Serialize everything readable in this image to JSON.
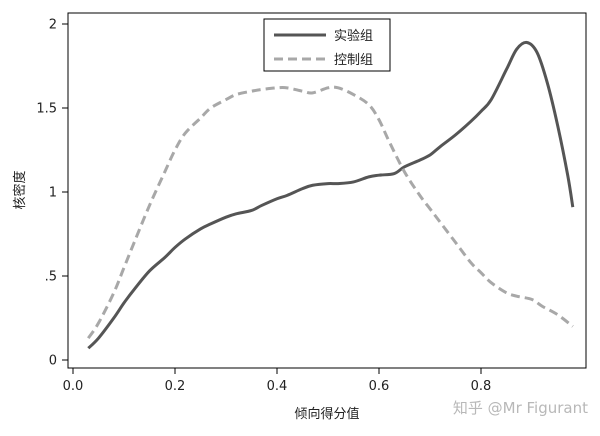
{
  "chart_data": {
    "type": "line",
    "xlabel": "倾向得分值",
    "ylabel": "核密度",
    "xlim": [
      0.0,
      1.0
    ],
    "ylim": [
      0,
      2
    ],
    "xticks": [
      0.0,
      0.2,
      0.4,
      0.6,
      0.8
    ],
    "xtick_labels": [
      "0.0",
      "0.2",
      "0.4",
      "0.6",
      "0.8"
    ],
    "yticks": [
      0,
      0.5,
      1,
      1.5,
      2
    ],
    "ytick_labels": [
      "0",
      ".5",
      "1",
      "1.5",
      "2"
    ],
    "grid": false,
    "legend_position": "top-center",
    "series": [
      {
        "name": "实验组",
        "color": "#555555",
        "dash": "solid",
        "x": [
          0.03,
          0.05,
          0.08,
          0.1,
          0.12,
          0.15,
          0.18,
          0.2,
          0.22,
          0.25,
          0.27,
          0.3,
          0.32,
          0.35,
          0.37,
          0.4,
          0.42,
          0.45,
          0.47,
          0.5,
          0.52,
          0.55,
          0.58,
          0.6,
          0.63,
          0.65,
          0.68,
          0.7,
          0.72,
          0.75,
          0.78,
          0.8,
          0.82,
          0.85,
          0.87,
          0.89,
          0.91,
          0.93,
          0.95,
          0.97,
          0.98
        ],
        "y": [
          0.07,
          0.13,
          0.25,
          0.34,
          0.42,
          0.53,
          0.61,
          0.67,
          0.72,
          0.78,
          0.81,
          0.85,
          0.87,
          0.89,
          0.92,
          0.96,
          0.98,
          1.02,
          1.04,
          1.05,
          1.05,
          1.06,
          1.09,
          1.1,
          1.11,
          1.15,
          1.19,
          1.22,
          1.27,
          1.34,
          1.42,
          1.48,
          1.55,
          1.73,
          1.85,
          1.89,
          1.83,
          1.65,
          1.4,
          1.1,
          0.91
        ]
      },
      {
        "name": "控制组",
        "color": "#a8a8a8",
        "dash": "dashed",
        "x": [
          0.03,
          0.05,
          0.08,
          0.1,
          0.12,
          0.15,
          0.18,
          0.2,
          0.22,
          0.25,
          0.27,
          0.3,
          0.32,
          0.35,
          0.37,
          0.4,
          0.42,
          0.45,
          0.47,
          0.5,
          0.52,
          0.55,
          0.58,
          0.6,
          0.62,
          0.65,
          0.68,
          0.7,
          0.72,
          0.75,
          0.78,
          0.8,
          0.82,
          0.85,
          0.87,
          0.9,
          0.92,
          0.95,
          0.98
        ],
        "y": [
          0.13,
          0.22,
          0.4,
          0.55,
          0.7,
          0.92,
          1.12,
          1.25,
          1.35,
          1.44,
          1.5,
          1.55,
          1.58,
          1.6,
          1.61,
          1.62,
          1.62,
          1.6,
          1.59,
          1.62,
          1.62,
          1.58,
          1.52,
          1.43,
          1.3,
          1.12,
          0.98,
          0.9,
          0.82,
          0.7,
          0.58,
          0.52,
          0.46,
          0.4,
          0.38,
          0.36,
          0.32,
          0.27,
          0.2
        ]
      }
    ]
  },
  "watermark": "知乎 @Mr Figurant"
}
